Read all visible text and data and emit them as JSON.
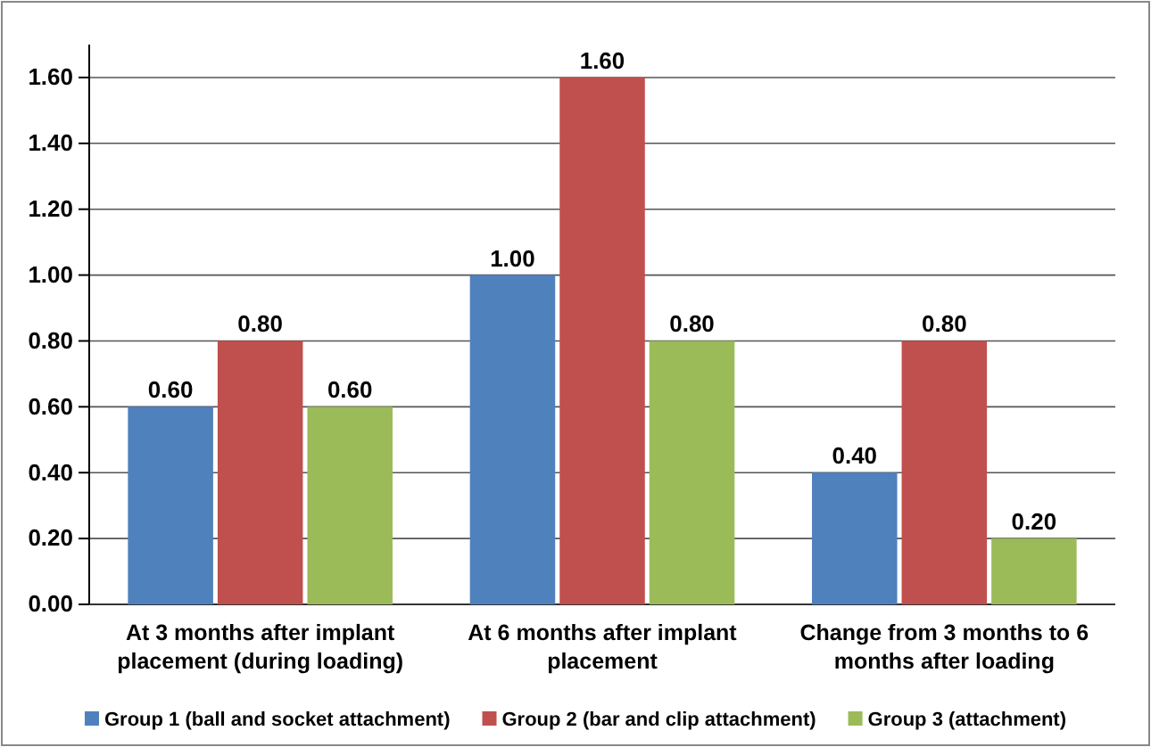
{
  "chart_data": {
    "type": "bar",
    "categories": [
      "At 3 months after implant placement (during loading)",
      "At 6 months after implant placement",
      "Change from 3 months to 6 months after loading"
    ],
    "series": [
      {
        "name": "Group 1 (ball and socket attachment)",
        "color": "#4f81bd",
        "values": [
          0.6,
          1.0,
          0.4
        ],
        "value_labels": [
          "0.60",
          "1.00",
          "0.40"
        ]
      },
      {
        "name": "Group 2 (bar and clip attachment)",
        "color": "#c0504d",
        "values": [
          0.8,
          1.6,
          0.8
        ],
        "value_labels": [
          "0.80",
          "1.60",
          "0.80"
        ]
      },
      {
        "name": "Group 3 (attachment)",
        "color": "#9bbb59",
        "values": [
          0.6,
          0.8,
          0.2
        ],
        "value_labels": [
          "0.60",
          "0.80",
          "0.20"
        ]
      }
    ],
    "ylim": [
      0,
      1.7
    ],
    "yticks": [
      {
        "value": 0,
        "label": "0.00"
      },
      {
        "value": 0.2,
        "label": "0.20"
      },
      {
        "value": 0.4,
        "label": "0.40"
      },
      {
        "value": 0.6,
        "label": "0.60"
      },
      {
        "value": 0.8,
        "label": "0.80"
      },
      {
        "value": 1,
        "label": "1.00"
      },
      {
        "value": 1.2,
        "label": "1.20"
      },
      {
        "value": 1.4,
        "label": "1.40"
      },
      {
        "value": 1.6,
        "label": "1.60"
      }
    ],
    "grid": "y",
    "legend": "bottom"
  }
}
